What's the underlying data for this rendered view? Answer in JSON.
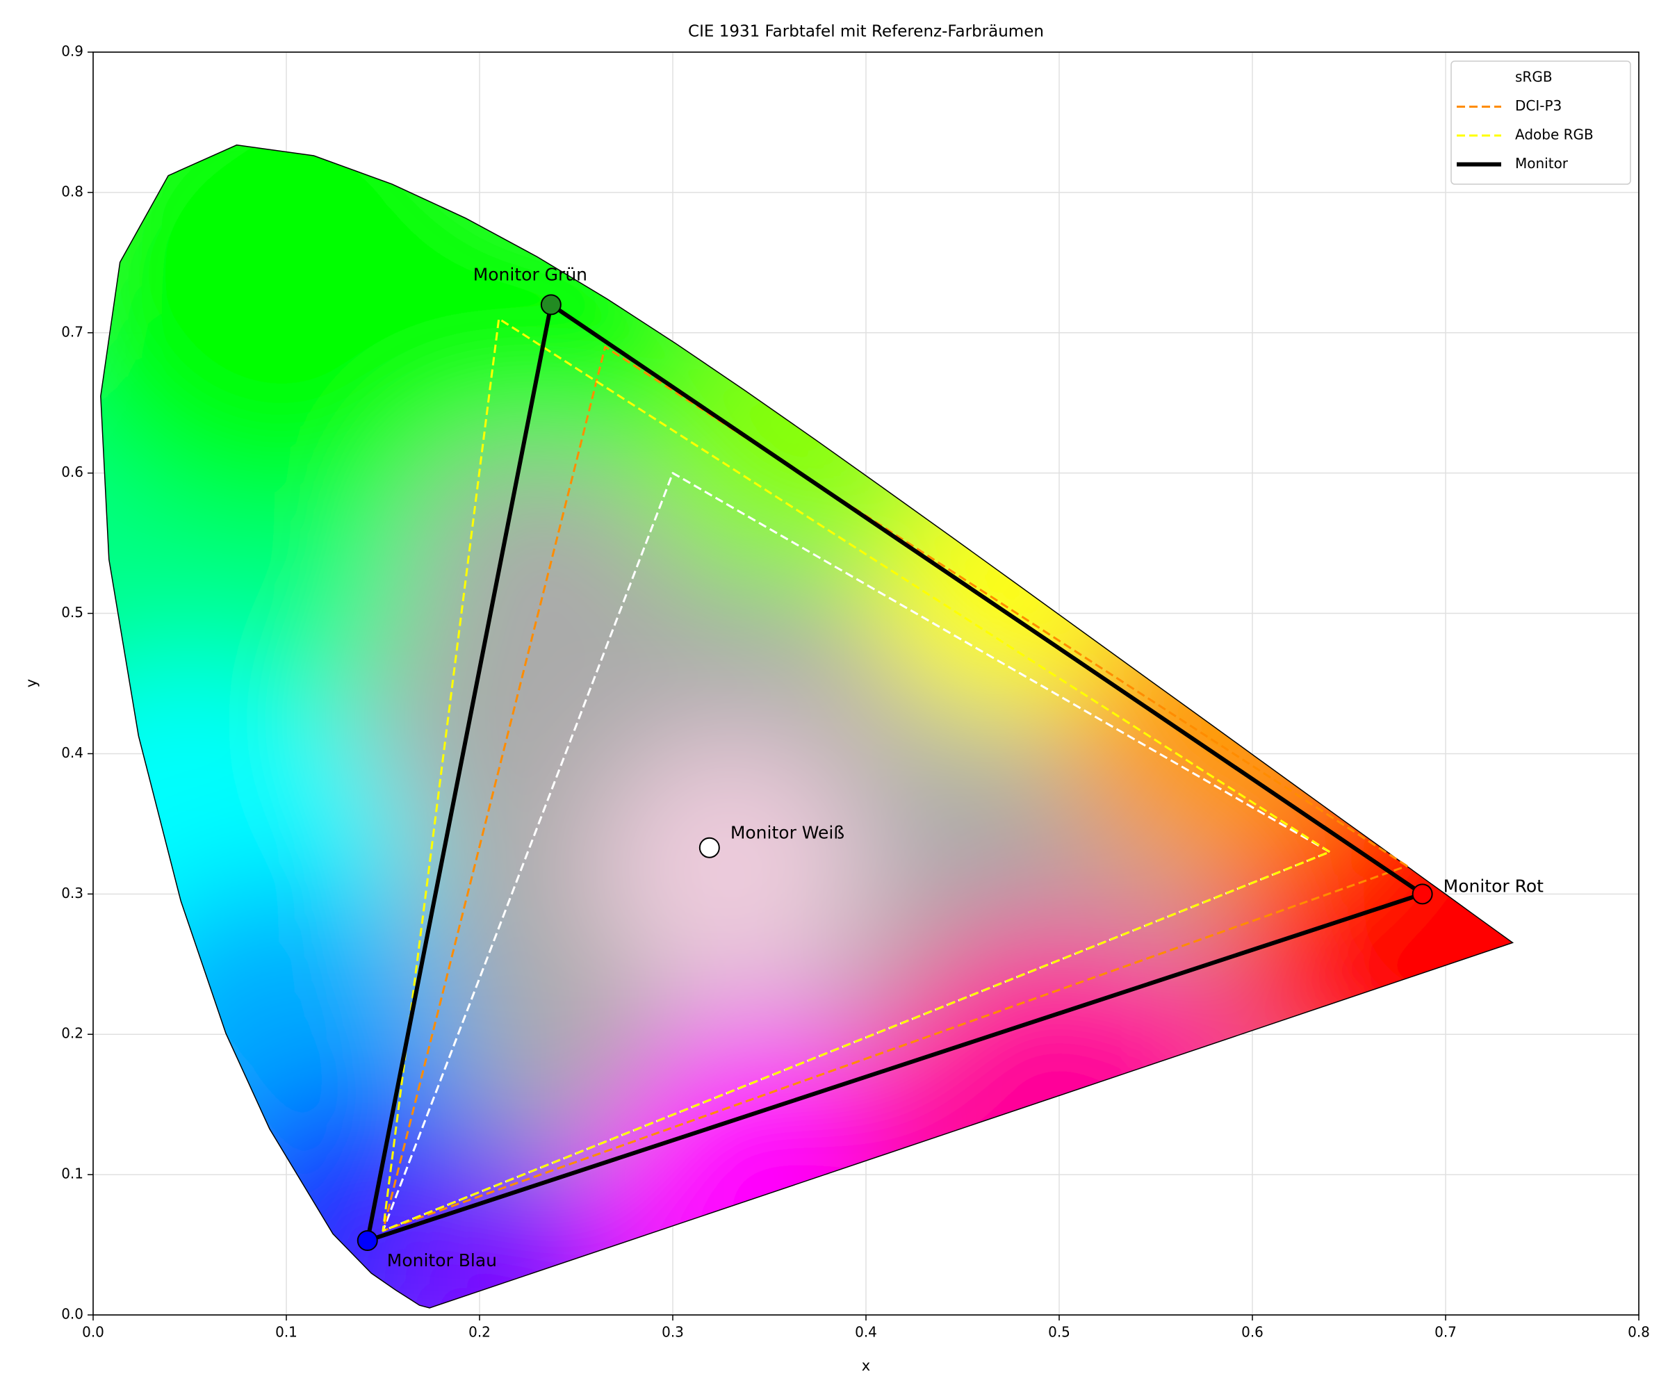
{
  "chart_data": {
    "type": "line",
    "title": "CIE 1931 Farbtafel mit Referenz-Farbräumen",
    "xlabel": "x",
    "ylabel": "y",
    "xlim": [
      0,
      0.8
    ],
    "ylim": [
      0,
      0.9
    ],
    "xticks": [
      {
        "value": 0,
        "label": "0.0"
      },
      0.1,
      0.2,
      0.3,
      0.4,
      0.5,
      0.6,
      0.7,
      0.8
    ],
    "yticks": [
      {
        "value": 0,
        "label": "0.0"
      },
      0.1,
      0.2,
      0.3,
      0.4,
      0.5,
      0.6,
      0.7,
      0.8,
      0.9
    ],
    "grid": true,
    "legend": "upper right",
    "spectral_locus": {
      "x": [
        0.1741,
        0.1689,
        0.1644,
        0.1566,
        0.144,
        0.1241,
        0.0913,
        0.0687,
        0.0454,
        0.0235,
        0.0082,
        0.0039,
        0.0139,
        0.0389,
        0.0743,
        0.1142,
        0.1547,
        0.1929,
        0.2296,
        0.2658,
        0.3016,
        0.3373,
        0.3731,
        0.4087,
        0.4441,
        0.4788,
        0.5125,
        0.5448,
        0.5752,
        0.6029,
        0.627,
        0.6482,
        0.6658,
        0.6801,
        0.6915,
        0.7006,
        0.7079,
        0.714,
        0.7347
      ],
      "y": [
        0.005,
        0.0069,
        0.0109,
        0.0177,
        0.0297,
        0.0578,
        0.1327,
        0.2007,
        0.295,
        0.4127,
        0.5384,
        0.6548,
        0.7502,
        0.812,
        0.8338,
        0.8262,
        0.8059,
        0.7816,
        0.7543,
        0.7243,
        0.6923,
        0.6589,
        0.6245,
        0.5896,
        0.5547,
        0.5202,
        0.4866,
        0.4544,
        0.4242,
        0.3965,
        0.3725,
        0.3514,
        0.334,
        0.3197,
        0.3083,
        0.2993,
        0.292,
        0.2859,
        0.2653
      ]
    },
    "series": [
      {
        "name": "sRGB",
        "color": "#ffffff",
        "dash": true,
        "x": [
          0.64,
          0.3,
          0.15
        ],
        "y": [
          0.33,
          0.6,
          0.06
        ]
      },
      {
        "name": "DCI-P3",
        "color": "#ff8c00",
        "dash": true,
        "x": [
          0.68,
          0.265,
          0.15
        ],
        "y": [
          0.32,
          0.69,
          0.06
        ]
      },
      {
        "name": "Adobe RGB",
        "color": "#ffff00",
        "dash": true,
        "x": [
          0.64,
          0.21,
          0.15
        ],
        "y": [
          0.33,
          0.71,
          0.06
        ]
      },
      {
        "name": "Monitor",
        "color": "#000000",
        "dash": false,
        "x": [
          0.688,
          0.237,
          0.142
        ],
        "y": [
          0.3,
          0.72,
          0.053
        ]
      }
    ],
    "points": [
      {
        "label": "Monitor Rot",
        "x": 0.688,
        "y": 0.3,
        "color": "#ff0000"
      },
      {
        "label": "Monitor Grün",
        "x": 0.237,
        "y": 0.72,
        "color": "#228b22"
      },
      {
        "label": "Monitor Blau",
        "x": 0.142,
        "y": 0.053,
        "color": "#0000ff"
      },
      {
        "label": "Monitor Weiß",
        "x": 0.319,
        "y": 0.333,
        "color": "#ffffff"
      }
    ]
  }
}
